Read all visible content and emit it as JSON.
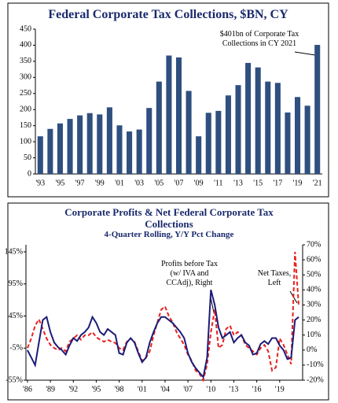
{
  "chart_data": [
    {
      "type": "bar",
      "title": "Federal Corporate Tax Collections, $BN, CY",
      "annotation": "$401bn of Corporate Tax Collections in CY 2021",
      "categories": [
        "'93",
        null,
        "'95",
        null,
        "'97",
        null,
        "'99",
        null,
        "'01",
        null,
        "'03",
        null,
        "'05",
        null,
        "'07",
        null,
        "'09",
        null,
        "'11",
        null,
        "'13",
        null,
        "'15",
        null,
        "'17",
        null,
        "'19",
        null,
        "'21"
      ],
      "values": [
        117,
        140,
        157,
        171,
        182,
        189,
        185,
        207,
        151,
        132,
        138,
        205,
        287,
        368,
        362,
        258,
        117,
        190,
        196,
        244,
        276,
        345,
        331,
        287,
        283,
        191,
        239,
        212,
        401
      ],
      "color": "#2f4f7f",
      "ylim": [
        0,
        450
      ],
      "yticks": [
        0,
        50,
        100,
        150,
        200,
        250,
        300,
        350,
        400,
        450
      ],
      "grid": false
    },
    {
      "type": "line",
      "title": "Corporate Profits & Net Federal Corporate Tax Collections",
      "subtitle": "4-Quarter Rolling, Y/Y Pct Change",
      "x": [
        1986,
        1986.5,
        1987,
        1987.5,
        1988,
        1988.5,
        1989,
        1989.5,
        1990,
        1990.5,
        1991,
        1991.5,
        1992,
        1992.5,
        1993,
        1993.5,
        1994,
        1994.5,
        1995,
        1995.5,
        1996,
        1996.5,
        1997,
        1997.5,
        1998,
        1998.5,
        1999,
        1999.5,
        2000,
        2000.5,
        2001,
        2001.5,
        2002,
        2002.5,
        2003,
        2003.5,
        2004,
        2004.5,
        2005,
        2005.5,
        2006,
        2006.5,
        2007,
        2007.5,
        2008,
        2008.5,
        2009,
        2009.5,
        2010,
        2010.5,
        2011,
        2011.5,
        2012,
        2012.5,
        2013,
        2013.5,
        2014,
        2014.5,
        2015,
        2015.5,
        2016,
        2016.5,
        2017,
        2017.5,
        2018,
        2018.5,
        2019,
        2019.5,
        2020,
        2020.5,
        2021,
        2021.5
      ],
      "series": [
        {
          "name": "Net Taxes, Left",
          "color": "#e8211f",
          "dashed": true,
          "values": [
            -5,
            10,
            30,
            40,
            25,
            10,
            0,
            -5,
            -8,
            -5,
            -10,
            5,
            10,
            15,
            8,
            15,
            15,
            20,
            12,
            8,
            5,
            8,
            5,
            3,
            -5,
            -8,
            5,
            10,
            5,
            -10,
            -25,
            -20,
            -10,
            15,
            35,
            55,
            60,
            45,
            35,
            20,
            10,
            0,
            -15,
            -25,
            -40,
            -45,
            -55,
            -30,
            20,
            55,
            -5,
            0,
            25,
            30,
            15,
            20,
            15,
            0,
            -5,
            -10,
            -15,
            -5,
            0,
            -10,
            -40,
            -35,
            10,
            0,
            -15,
            -30,
            145,
            60
          ]
        },
        {
          "name": "Profits before Tax (w/ IVA and CCAdj), Right",
          "color": "#1c1c78",
          "axis": "y2",
          "values": [
            0,
            -5,
            -10,
            5,
            20,
            22,
            12,
            5,
            2,
            0,
            -3,
            3,
            8,
            6,
            10,
            12,
            15,
            22,
            18,
            12,
            10,
            14,
            12,
            10,
            -2,
            -3,
            5,
            8,
            5,
            -2,
            -8,
            -5,
            5,
            12,
            18,
            22,
            22,
            20,
            18,
            15,
            12,
            8,
            -2,
            -8,
            -12,
            -15,
            -18,
            -5,
            40,
            30,
            15,
            8,
            10,
            12,
            5,
            8,
            10,
            5,
            3,
            -3,
            -2,
            4,
            6,
            4,
            8,
            8,
            3,
            0,
            -6,
            -5,
            20,
            22
          ]
        }
      ],
      "xlim": [
        1985.8,
        2022
      ],
      "xticks": [
        {
          "value": 1986,
          "label": "'86"
        },
        {
          "value": 1989,
          "label": "'89"
        },
        {
          "value": 1992,
          "label": "'92"
        },
        {
          "value": 1995,
          "label": "'95"
        },
        {
          "value": 1998,
          "label": "'98"
        },
        {
          "value": 2001,
          "label": "'01"
        },
        {
          "value": 2004,
          "label": "'04"
        },
        {
          "value": 2007,
          "label": "'07"
        },
        {
          "value": 2010,
          "label": "'10"
        },
        {
          "value": 2013,
          "label": "'13"
        },
        {
          "value": 2016,
          "label": "'16"
        },
        {
          "value": 2019,
          "label": "'19"
        }
      ],
      "ylim": [
        -55,
        156
      ],
      "yticks": [
        {
          "value": -55,
          "label": "-55%"
        },
        {
          "value": -5,
          "label": "-5%"
        },
        {
          "value": 45,
          "label": "45%"
        },
        {
          "value": 95,
          "label": "95%"
        },
        {
          "value": 145,
          "label": "145%"
        }
      ],
      "y2lim": [
        -20,
        70
      ],
      "y2ticks": [
        {
          "value": -20,
          "label": "-20%"
        },
        {
          "value": -10,
          "label": "-10%"
        },
        {
          "value": 0,
          "label": "0%"
        },
        {
          "value": 10,
          "label": "10%"
        },
        {
          "value": 20,
          "label": "20%"
        },
        {
          "value": 30,
          "label": "30%"
        },
        {
          "value": 40,
          "label": "40%"
        },
        {
          "value": 50,
          "label": "50%"
        },
        {
          "value": 60,
          "label": "60%"
        },
        {
          "value": 70,
          "label": "70%"
        }
      ]
    }
  ]
}
